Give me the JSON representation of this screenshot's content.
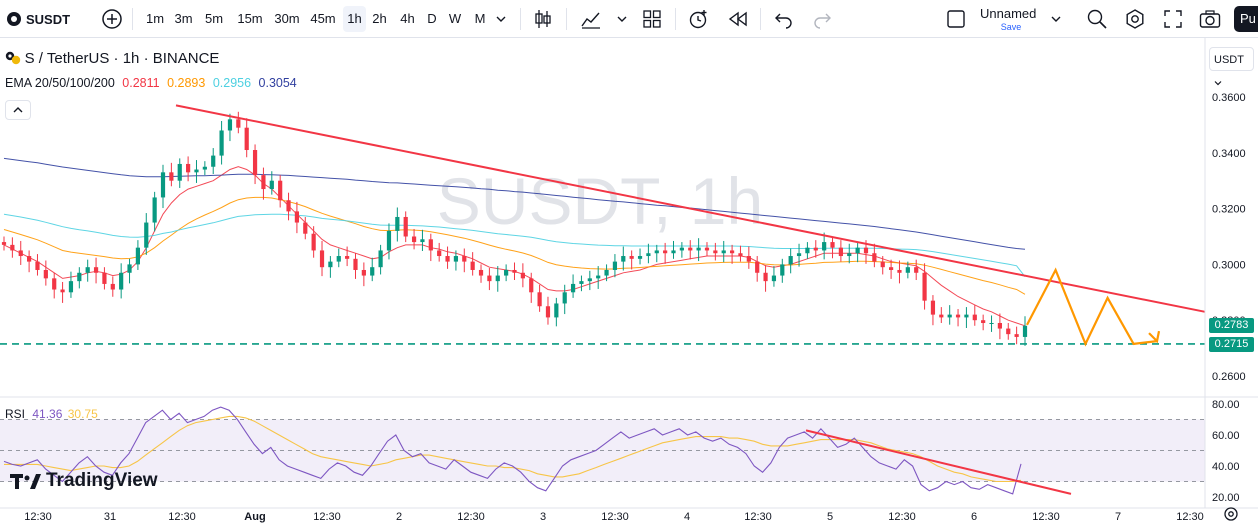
{
  "toolbar": {
    "symbol": "SUSDT",
    "timeframes": [
      "1m",
      "3m",
      "5m",
      "15m",
      "30m",
      "45m",
      "1h",
      "2h",
      "4h",
      "D",
      "W",
      "M"
    ],
    "active_timeframe": "1h",
    "layout_name": "Unnamed",
    "save_label": "Save",
    "profile_label": "Pu"
  },
  "legend": {
    "title": "S / TetherUS · 1h · BINANCE",
    "ema_label": "EMA 20/50/100/200",
    "ema_values": [
      "0.2811",
      "0.2893",
      "0.2956",
      "0.3054"
    ],
    "ema_colors": [
      "#f23645",
      "#ff9800",
      "#4dd0e1",
      "#303f9f"
    ]
  },
  "watermark": "SUSDT, 1h",
  "currency_button": "USDT",
  "price_badges": {
    "last": "0.2783",
    "support": "0.2715"
  },
  "rsi_legend": {
    "label": "RSI",
    "value": "41.36",
    "ma_value": "30.75"
  },
  "brand": "TradingView",
  "chart_data": [
    {
      "type": "candlestick",
      "symbol": "S / TetherUS",
      "interval": "1h",
      "exchange": "BINANCE",
      "x_ticks": [
        "12:30",
        "31",
        "12:30",
        "Aug",
        "12:30",
        "2",
        "12:30",
        "3",
        "12:30",
        "4",
        "12:30",
        "5",
        "12:30",
        "6",
        "12:30",
        "7",
        "12:30"
      ],
      "y_ticks": [
        "0.3600",
        "0.3400",
        "0.3200",
        "0.3000",
        "0.2800",
        "0.2600"
      ],
      "ylim": [
        0.255,
        0.37
      ],
      "close_path": [
        0.307,
        0.305,
        0.303,
        0.301,
        0.298,
        0.295,
        0.291,
        0.29,
        0.294,
        0.297,
        0.299,
        0.297,
        0.293,
        0.291,
        0.297,
        0.3,
        0.306,
        0.315,
        0.324,
        0.333,
        0.33,
        0.336,
        0.333,
        0.334,
        0.335,
        0.339,
        0.348,
        0.352,
        0.349,
        0.341,
        0.332,
        0.327,
        0.33,
        0.323,
        0.319,
        0.315,
        0.311,
        0.305,
        0.299,
        0.301,
        0.303,
        0.302,
        0.298,
        0.296,
        0.299,
        0.305,
        0.312,
        0.317,
        0.31,
        0.308,
        0.309,
        0.305,
        0.303,
        0.301,
        0.303,
        0.301,
        0.298,
        0.296,
        0.294,
        0.296,
        0.298,
        0.297,
        0.295,
        0.29,
        0.285,
        0.281,
        0.286,
        0.29,
        0.293,
        0.294,
        0.295,
        0.296,
        0.298,
        0.301,
        0.303,
        0.302,
        0.303,
        0.304,
        0.305,
        0.304,
        0.305,
        0.306,
        0.305,
        0.306,
        0.305,
        0.304,
        0.305,
        0.304,
        0.303,
        0.301,
        0.297,
        0.294,
        0.296,
        0.3,
        0.303,
        0.304,
        0.306,
        0.305,
        0.308,
        0.306,
        0.303,
        0.304,
        0.306,
        0.304,
        0.301,
        0.299,
        0.298,
        0.297,
        0.299,
        0.297,
        0.287,
        0.282,
        0.281,
        0.282,
        0.281,
        0.282,
        0.28,
        0.279,
        0.279,
        0.277,
        0.275,
        0.274,
        0.278
      ],
      "ema": [
        {
          "name": "EMA 20",
          "color": "#f23645",
          "values": [
            0.307,
            0.3055,
            0.304,
            0.3025,
            0.301,
            0.299,
            0.297,
            0.295,
            0.2955,
            0.296,
            0.297,
            0.2975,
            0.297,
            0.296,
            0.2965,
            0.298,
            0.301,
            0.306,
            0.312,
            0.318,
            0.322,
            0.325,
            0.327,
            0.328,
            0.329,
            0.33,
            0.332,
            0.334,
            0.335,
            0.334,
            0.332,
            0.329,
            0.327,
            0.324,
            0.321,
            0.318,
            0.315,
            0.312,
            0.309,
            0.307,
            0.306,
            0.305,
            0.304,
            0.303,
            0.302,
            0.3025,
            0.3045,
            0.306,
            0.307,
            0.307,
            0.307,
            0.306,
            0.3055,
            0.3045,
            0.304,
            0.303,
            0.302,
            0.3005,
            0.299,
            0.2985,
            0.298,
            0.2975,
            0.2965,
            0.295,
            0.293,
            0.291,
            0.2905,
            0.2905,
            0.291,
            0.292,
            0.293,
            0.294,
            0.295,
            0.296,
            0.297,
            0.2975,
            0.298,
            0.299,
            0.3,
            0.3005,
            0.301,
            0.3015,
            0.302,
            0.3025,
            0.303,
            0.303,
            0.303,
            0.303,
            0.303,
            0.3025,
            0.301,
            0.2995,
            0.299,
            0.2995,
            0.3,
            0.301,
            0.302,
            0.303,
            0.304,
            0.304,
            0.304,
            0.304,
            0.304,
            0.3035,
            0.303,
            0.302,
            0.301,
            0.3005,
            0.3,
            0.2995,
            0.2975,
            0.295,
            0.2925,
            0.2905,
            0.2885,
            0.287,
            0.2855,
            0.284,
            0.283,
            0.2815,
            0.28,
            0.279,
            0.278
          ]
        },
        {
          "name": "EMA 50",
          "color": "#ff9800",
          "values": [
            0.3125,
            0.3116,
            0.3107,
            0.3098,
            0.3088,
            0.3076,
            0.3063,
            0.305,
            0.3044,
            0.304,
            0.3036,
            0.3032,
            0.3028,
            0.3023,
            0.302,
            0.3021,
            0.3027,
            0.3041,
            0.306,
            0.3084,
            0.3105,
            0.3127,
            0.3147,
            0.3163,
            0.3177,
            0.319,
            0.3204,
            0.322,
            0.3232,
            0.3238,
            0.324,
            0.324,
            0.3238,
            0.3232,
            0.3225,
            0.3217,
            0.3207,
            0.3195,
            0.3183,
            0.3173,
            0.3164,
            0.3155,
            0.3146,
            0.3136,
            0.3128,
            0.3122,
            0.3121,
            0.3123,
            0.3124,
            0.3123,
            0.3121,
            0.3117,
            0.3112,
            0.3106,
            0.31,
            0.3094,
            0.3086,
            0.3078,
            0.3069,
            0.3061,
            0.3054,
            0.3048,
            0.3041,
            0.3032,
            0.302,
            0.3007,
            0.2999,
            0.2994,
            0.299,
            0.2987,
            0.2985,
            0.2984,
            0.2983,
            0.2984,
            0.2986,
            0.2987,
            0.2989,
            0.2991,
            0.2993,
            0.2995,
            0.2997,
            0.2999,
            0.3001,
            0.3003,
            0.3005,
            0.3006,
            0.3007,
            0.3008,
            0.3008,
            0.3008,
            0.3005,
            0.3001,
            0.2999,
            0.2998,
            0.2998,
            0.3,
            0.3002,
            0.3004,
            0.3007,
            0.3008,
            0.3009,
            0.301,
            0.3011,
            0.3011,
            0.301,
            0.3009,
            0.3007,
            0.3005,
            0.3004,
            0.3002,
            0.2997,
            0.299,
            0.2982,
            0.2974,
            0.2966,
            0.2958,
            0.295,
            0.2942,
            0.2935,
            0.2927,
            0.2918,
            0.291,
            0.2893
          ]
        },
        {
          "name": "EMA 100",
          "color": "#4dd0e1",
          "values": [
            0.318,
            0.3175,
            0.317,
            0.3164,
            0.3158,
            0.3151,
            0.3143,
            0.3135,
            0.3129,
            0.3124,
            0.312,
            0.3115,
            0.311,
            0.3104,
            0.31,
            0.3098,
            0.3097,
            0.31,
            0.3104,
            0.3111,
            0.3116,
            0.3124,
            0.3131,
            0.3137,
            0.3143,
            0.3149,
            0.3157,
            0.3165,
            0.3172,
            0.3175,
            0.3178,
            0.3179,
            0.318,
            0.318,
            0.3178,
            0.3176,
            0.3174,
            0.317,
            0.3165,
            0.3162,
            0.3159,
            0.3156,
            0.3152,
            0.3148,
            0.3144,
            0.3141,
            0.314,
            0.314,
            0.314,
            0.3139,
            0.3138,
            0.3136,
            0.3134,
            0.3131,
            0.3128,
            0.3125,
            0.3122,
            0.3118,
            0.3114,
            0.311,
            0.3107,
            0.3104,
            0.3101,
            0.3097,
            0.3092,
            0.3086,
            0.3081,
            0.3078,
            0.3075,
            0.3073,
            0.3071,
            0.3069,
            0.3068,
            0.3067,
            0.3067,
            0.3066,
            0.3066,
            0.3066,
            0.3066,
            0.3066,
            0.3066,
            0.3066,
            0.3066,
            0.3066,
            0.3066,
            0.3066,
            0.3066,
            0.3066,
            0.3065,
            0.3064,
            0.3062,
            0.306,
            0.3058,
            0.3057,
            0.3057,
            0.3057,
            0.3057,
            0.3057,
            0.3058,
            0.3058,
            0.3058,
            0.3058,
            0.3058,
            0.3058,
            0.3058,
            0.3057,
            0.3056,
            0.3055,
            0.3054,
            0.3053,
            0.305,
            0.3046,
            0.3041,
            0.3036,
            0.3031,
            0.3026,
            0.3021,
            0.3016,
            0.3011,
            0.3006,
            0.3001,
            0.2995,
            0.2956
          ]
        },
        {
          "name": "EMA 200",
          "color": "#303f9f",
          "values": [
            0.338,
            0.3376,
            0.3372,
            0.3368,
            0.3364,
            0.3359,
            0.3354,
            0.3349,
            0.3345,
            0.3341,
            0.3337,
            0.3333,
            0.3329,
            0.3325,
            0.3321,
            0.3318,
            0.3316,
            0.3314,
            0.3314,
            0.3314,
            0.3315,
            0.3316,
            0.3317,
            0.3318,
            0.3318,
            0.3319,
            0.332,
            0.3322,
            0.3323,
            0.3323,
            0.3323,
            0.3322,
            0.3321,
            0.332,
            0.3319,
            0.3317,
            0.3315,
            0.3313,
            0.3311,
            0.3309,
            0.3307,
            0.3305,
            0.3302,
            0.33,
            0.3297,
            0.3295,
            0.3293,
            0.3292,
            0.329,
            0.3288,
            0.3286,
            0.3284,
            0.3282,
            0.328,
            0.3278,
            0.3276,
            0.3274,
            0.3271,
            0.3269,
            0.3266,
            0.3264,
            0.3261,
            0.3259,
            0.3256,
            0.3253,
            0.325,
            0.3247,
            0.3244,
            0.3241,
            0.3238,
            0.3235,
            0.3232,
            0.3229,
            0.3226,
            0.3224,
            0.3221,
            0.3218,
            0.3215,
            0.3212,
            0.321,
            0.3207,
            0.3204,
            0.3202,
            0.3199,
            0.3196,
            0.3193,
            0.319,
            0.3187,
            0.3184,
            0.3181,
            0.3178,
            0.3175,
            0.3172,
            0.3169,
            0.3166,
            0.3163,
            0.316,
            0.3157,
            0.3154,
            0.3151,
            0.3148,
            0.3145,
            0.3142,
            0.3139,
            0.3136,
            0.3132,
            0.3128,
            0.3124,
            0.312,
            0.3116,
            0.3111,
            0.3106,
            0.3101,
            0.3096,
            0.3091,
            0.3086,
            0.3081,
            0.3076,
            0.3071,
            0.3066,
            0.3061,
            0.3057,
            0.3054
          ]
        }
      ],
      "trendline": {
        "from": [
          0.357,
          0.22
        ],
        "to": [
          0.283,
          1.0
        ],
        "color": "#f23645"
      },
      "support_level": {
        "price": 0.2715,
        "color": "#089981"
      },
      "projection": {
        "color": "#ff9800",
        "points": [
          [
            0,
            0.2783
          ],
          [
            0.22,
            0.298
          ],
          [
            0.45,
            0.2715
          ],
          [
            0.62,
            0.288
          ],
          [
            0.82,
            0.2715
          ],
          [
            1.0,
            0.2725
          ]
        ]
      }
    },
    {
      "type": "line",
      "name": "RSI",
      "y_ticks": [
        "80.00",
        "60.00",
        "40.00",
        "20.00"
      ],
      "ylim": [
        15,
        82
      ],
      "bands": [
        70,
        50,
        30
      ],
      "series": [
        {
          "name": "RSI",
          "color": "#7e57c2",
          "values": [
            43,
            41,
            40,
            42,
            44,
            38,
            34,
            30,
            36,
            42,
            46,
            40,
            36,
            34,
            42,
            48,
            58,
            68,
            72,
            76,
            70,
            74,
            68,
            70,
            72,
            76,
            78,
            76,
            70,
            62,
            54,
            48,
            52,
            44,
            40,
            38,
            36,
            34,
            32,
            38,
            42,
            40,
            36,
            34,
            40,
            48,
            56,
            60,
            50,
            46,
            48,
            42,
            40,
            38,
            44,
            40,
            36,
            34,
            32,
            38,
            42,
            40,
            36,
            30,
            26,
            24,
            32,
            40,
            44,
            46,
            48,
            50,
            54,
            58,
            62,
            58,
            60,
            62,
            64,
            60,
            62,
            64,
            60,
            62,
            58,
            56,
            58,
            54,
            52,
            48,
            40,
            36,
            42,
            52,
            58,
            60,
            62,
            58,
            64,
            58,
            52,
            54,
            58,
            52,
            46,
            42,
            40,
            38,
            44,
            40,
            28,
            24,
            26,
            30,
            28,
            30,
            26,
            25,
            28,
            26,
            24,
            22,
            41.36
          ]
        },
        {
          "name": "RSI-based MA",
          "color": "#f7c548",
          "values": [
            41,
            41,
            41,
            41,
            41,
            40,
            39,
            38,
            37,
            38,
            39,
            40,
            40,
            39,
            39,
            40,
            43,
            47,
            51,
            55,
            59,
            63,
            66,
            68,
            69,
            70,
            71,
            72,
            72,
            71,
            69,
            66,
            63,
            60,
            57,
            54,
            51,
            48,
            46,
            45,
            44,
            43,
            42,
            41,
            40,
            41,
            42,
            44,
            45,
            46,
            47,
            47,
            46,
            45,
            44,
            43,
            42,
            41,
            40,
            40,
            39,
            39,
            38,
            37,
            35,
            34,
            33,
            33,
            34,
            35,
            37,
            39,
            41,
            43,
            45,
            47,
            49,
            51,
            53,
            55,
            56,
            57,
            58,
            59,
            59,
            59,
            59,
            58,
            58,
            57,
            56,
            54,
            53,
            53,
            53,
            54,
            55,
            56,
            57,
            57,
            57,
            57,
            57,
            56,
            55,
            53,
            51,
            50,
            49,
            48,
            46,
            43,
            40,
            38,
            36,
            35,
            33,
            32,
            31,
            30,
            30,
            30,
            30.75
          ]
        }
      ],
      "trendline": {
        "from": [
          63,
          0.72
        ],
        "to": [
          22,
          0.98
        ],
        "color": "#f23645"
      }
    }
  ]
}
